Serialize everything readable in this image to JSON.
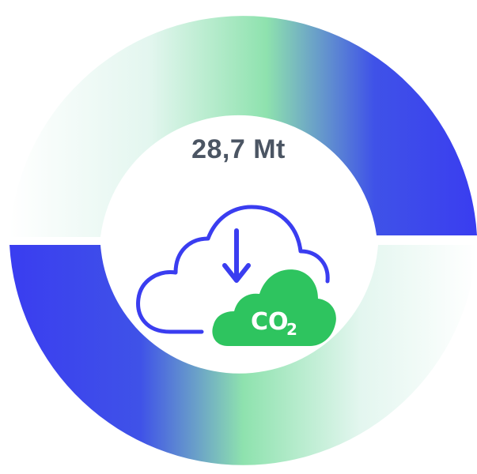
{
  "infographic": {
    "value": "28,7 Mt",
    "icon_text": {
      "molecule": "CO",
      "subscript": "2"
    }
  },
  "colors": {
    "blue": "#3a3df0",
    "green": "#8be0ac",
    "mint": "#e6f7f0",
    "text": "#4b5563",
    "cloud_green": "#2ec45f",
    "cloud_outline": "#3a3df0"
  },
  "icons": [
    "cloud-outline-icon",
    "down-arrow-icon",
    "co2-cloud-icon"
  ]
}
